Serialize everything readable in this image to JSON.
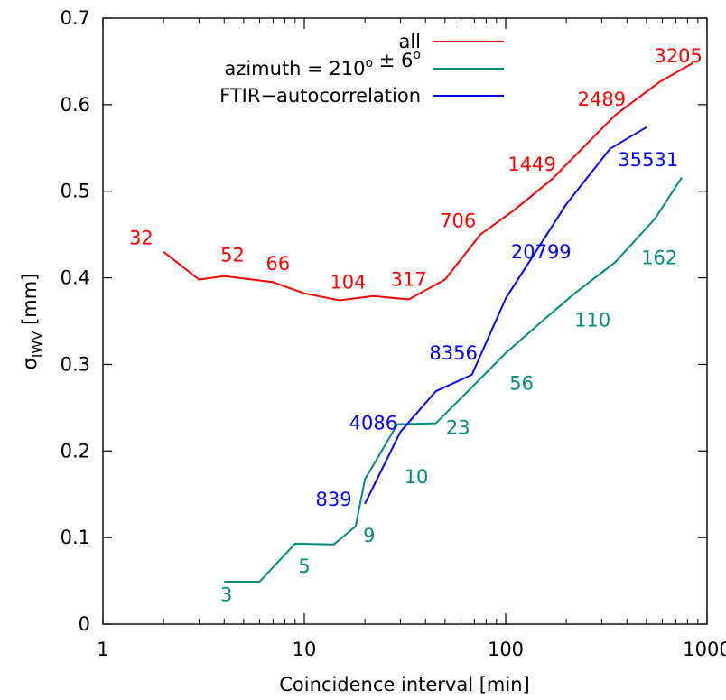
{
  "chart_data": {
    "type": "line",
    "xlabel": "Coincidence interval [min]",
    "ylabel": {
      "main": "σ",
      "sub": "IWV",
      "unit": " [mm]"
    },
    "x_scale": "log",
    "xlim": [
      1,
      1000
    ],
    "ylim": [
      0,
      0.7
    ],
    "x_ticks": [
      1,
      10,
      100,
      1000
    ],
    "x_tick_labels": [
      "1",
      "10",
      "100",
      "1000"
    ],
    "y_ticks": [
      0,
      0.1,
      0.2,
      0.3,
      0.4,
      0.5,
      0.6,
      0.7
    ],
    "y_tick_labels": [
      "0",
      "0.1",
      "0.2",
      "0.3",
      "0.4",
      "0.5",
      "0.6",
      "0.7"
    ],
    "grid": false,
    "legend_position": "top-right",
    "series": [
      {
        "id": "all",
        "legend": {
          "parts": [
            {
              "text": "all"
            }
          ]
        },
        "color": "#ff0000",
        "x": [
          2,
          3,
          4,
          7,
          10,
          15,
          22,
          33,
          50,
          75,
          110,
          170,
          350,
          580,
          850
        ],
        "y": [
          0.43,
          0.398,
          0.402,
          0.395,
          0.382,
          0.374,
          0.379,
          0.375,
          0.398,
          0.45,
          0.478,
          0.514,
          0.588,
          0.626,
          0.648
        ],
        "labels": [
          {
            "text": "32",
            "x": 1.55,
            "y": 0.446
          },
          {
            "text": "52",
            "x": 4.4,
            "y": 0.426
          },
          {
            "text": "66",
            "x": 7.4,
            "y": 0.416
          },
          {
            "text": "104",
            "x": 16.5,
            "y": 0.395
          },
          {
            "text": "317",
            "x": 33,
            "y": 0.398
          },
          {
            "text": "706",
            "x": 58,
            "y": 0.466
          },
          {
            "text": "1449",
            "x": 135,
            "y": 0.531
          },
          {
            "text": "2489",
            "x": 300,
            "y": 0.606
          },
          {
            "text": "3205",
            "x": 720,
            "y": 0.656
          }
        ]
      },
      {
        "id": "azimuth",
        "legend": {
          "parts": [
            {
              "text": "azimuth = 210"
            },
            {
              "text": "o",
              "sup": true
            },
            {
              "text": " ± 6"
            },
            {
              "text": "o",
              "sup": true
            }
          ]
        },
        "color": "#008b80",
        "x": [
          4,
          6,
          9,
          14,
          18,
          20,
          29,
          45,
          65,
          100,
          150,
          220,
          350,
          550,
          750
        ],
        "y": [
          0.049,
          0.049,
          0.093,
          0.092,
          0.113,
          0.167,
          0.231,
          0.232,
          0.269,
          0.313,
          0.349,
          0.382,
          0.418,
          0.468,
          0.516
        ],
        "labels": [
          {
            "text": "3",
            "x": 4.1,
            "y": 0.034
          },
          {
            "text": "5",
            "x": 10,
            "y": 0.067
          },
          {
            "text": "9",
            "x": 21,
            "y": 0.102
          },
          {
            "text": "10",
            "x": 36,
            "y": 0.17
          },
          {
            "text": "23",
            "x": 58,
            "y": 0.227
          },
          {
            "text": "56",
            "x": 120,
            "y": 0.278
          },
          {
            "text": "110",
            "x": 270,
            "y": 0.351
          },
          {
            "text": "162",
            "x": 580,
            "y": 0.423
          }
        ]
      },
      {
        "id": "ftir",
        "legend": {
          "parts": [
            {
              "text": "FTIR−autocorrelation"
            }
          ]
        },
        "color": "#0000ff",
        "x": [
          20,
          30,
          45,
          68,
          100,
          200,
          330,
          500
        ],
        "y": [
          0.139,
          0.222,
          0.269,
          0.288,
          0.376,
          0.485,
          0.549,
          0.574
        ],
        "labels": [
          {
            "text": "839",
            "x": 14,
            "y": 0.144
          },
          {
            "text": "4086",
            "x": 22,
            "y": 0.232
          },
          {
            "text": "8356",
            "x": 55,
            "y": 0.313
          },
          {
            "text": "20799",
            "x": 150,
            "y": 0.43
          },
          {
            "text": "35531",
            "x": 510,
            "y": 0.536
          }
        ]
      }
    ]
  }
}
